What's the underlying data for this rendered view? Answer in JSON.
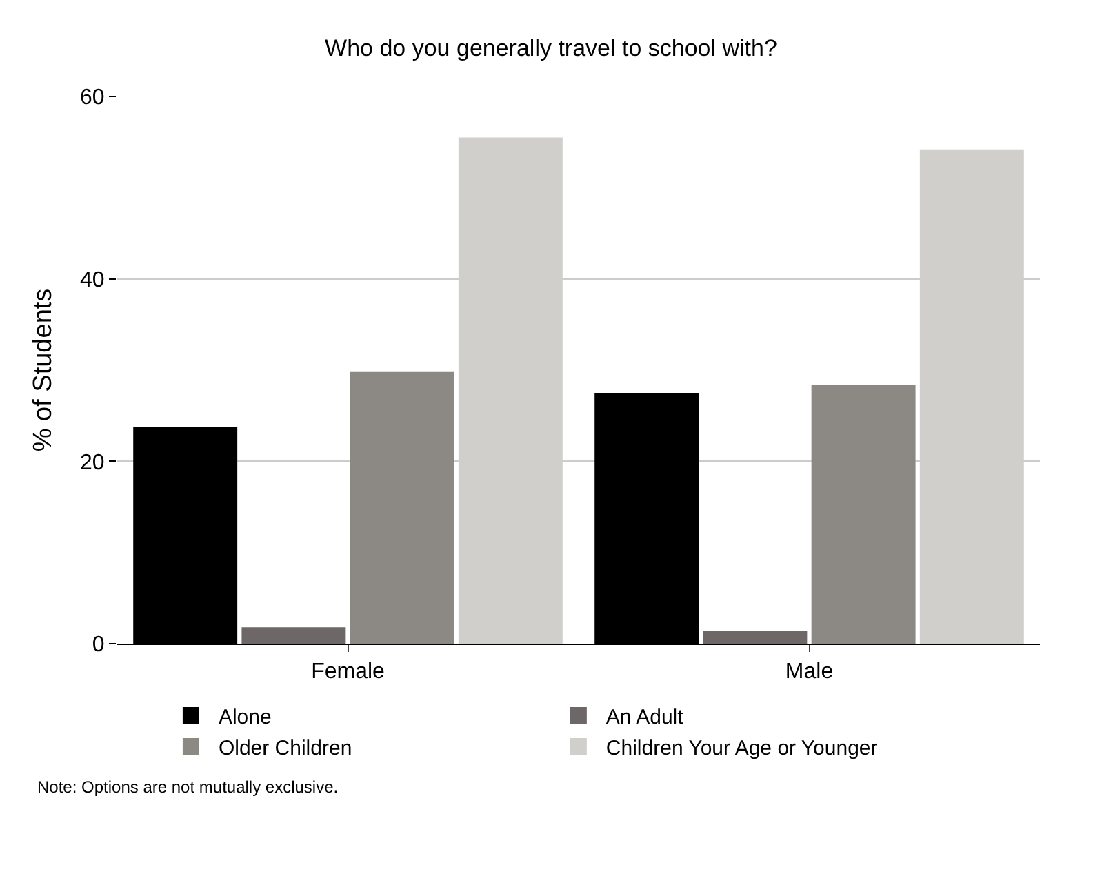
{
  "chart_data": {
    "type": "bar",
    "title": "Who do you generally travel to school with?",
    "ylabel": "% of Students",
    "categories": [
      "Female",
      "Male"
    ],
    "series": [
      {
        "name": "Alone",
        "color": "#000000",
        "values": [
          23.8,
          27.5
        ]
      },
      {
        "name": "An Adult",
        "color": "#6e6767",
        "values": [
          1.8,
          1.4
        ]
      },
      {
        "name": "Older Children",
        "color": "#8c8984",
        "values": [
          29.8,
          28.4
        ]
      },
      {
        "name": "Children Your Age or Younger",
        "color": "#d0cfcc",
        "values": [
          55.5,
          54.2
        ]
      }
    ],
    "ylim": [
      0,
      60
    ],
    "yticks": [
      0,
      20,
      40,
      60
    ],
    "grid": "y",
    "legend": "bottom",
    "annotations": [
      "Note: Options are not mutually exclusive."
    ]
  }
}
